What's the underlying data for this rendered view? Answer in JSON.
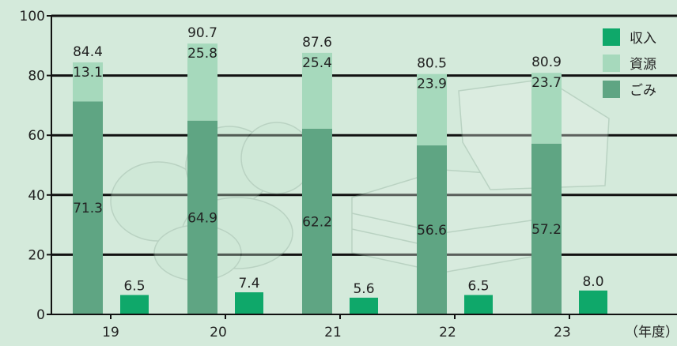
{
  "chart_data": {
    "type": "bar",
    "title": "",
    "xlabel": "（年度）",
    "ylabel": "",
    "ylim": [
      0,
      100
    ],
    "yticks": [
      0,
      20,
      40,
      60,
      80,
      100
    ],
    "grid": true,
    "legend_position": "top-right",
    "categories": [
      "19",
      "20",
      "21",
      "22",
      "23"
    ],
    "stacked_totals": [
      84.4,
      90.7,
      87.6,
      80.5,
      80.9
    ],
    "series": [
      {
        "name": "ごみ",
        "stack": "main",
        "color": "#5fa583",
        "values": [
          71.3,
          64.9,
          62.2,
          56.6,
          57.2
        ]
      },
      {
        "name": "資源",
        "stack": "main",
        "color": "#a6d9bc",
        "values": [
          13.1,
          25.8,
          25.4,
          23.9,
          23.7
        ]
      },
      {
        "name": "収入",
        "stack": "side",
        "color": "#0fa86a",
        "values": [
          6.5,
          7.4,
          5.6,
          6.5,
          8.0
        ]
      }
    ],
    "legend": [
      "収入",
      "資源",
      "ごみ"
    ]
  }
}
